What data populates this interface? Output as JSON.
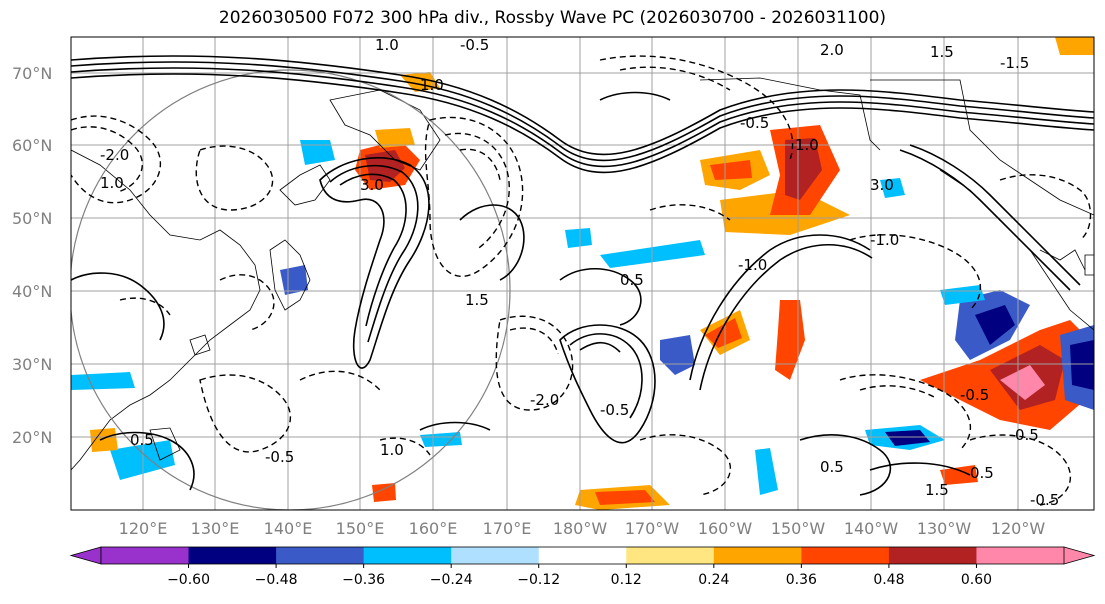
{
  "title": "2026030500 F072 300 hPa div., Rossby Wave PC (2026030700 - 2026031100)",
  "lat_labels": [
    "70°N",
    "60°N",
    "50°N",
    "40°N",
    "30°N",
    "20°N"
  ],
  "lon_labels": [
    "120°E",
    "130°E",
    "140°E",
    "150°E",
    "160°E",
    "170°E",
    "180°W",
    "170°W",
    "160°W",
    "150°W",
    "140°W",
    "130°W",
    "120°W"
  ],
  "colorbar": {
    "ticks": [
      "−0.60",
      "−0.48",
      "−0.36",
      "−0.24",
      "−0.12",
      "0.12",
      "0.24",
      "0.36",
      "0.48",
      "0.60"
    ],
    "colors": {
      "extend_min": "#9932cc",
      "bins": [
        "#9932cc",
        "#000080",
        "#3a5bc7",
        "#00bfff",
        "#b0e0ff",
        "#ffffff",
        "#ffe680",
        "#ffa500",
        "#ff4500",
        "#b22222",
        "#ff88aa"
      ],
      "extend_max": "#ff88aa"
    }
  },
  "contour_labels": [
    "-0.5",
    "-1.0",
    "-1.5",
    "-2.0",
    "0.5",
    "1.0",
    "1.5",
    "2.0",
    "3.0"
  ],
  "colors": {
    "grid": "#a0a0a0",
    "coast": "#000000",
    "contour": "#000000"
  }
}
